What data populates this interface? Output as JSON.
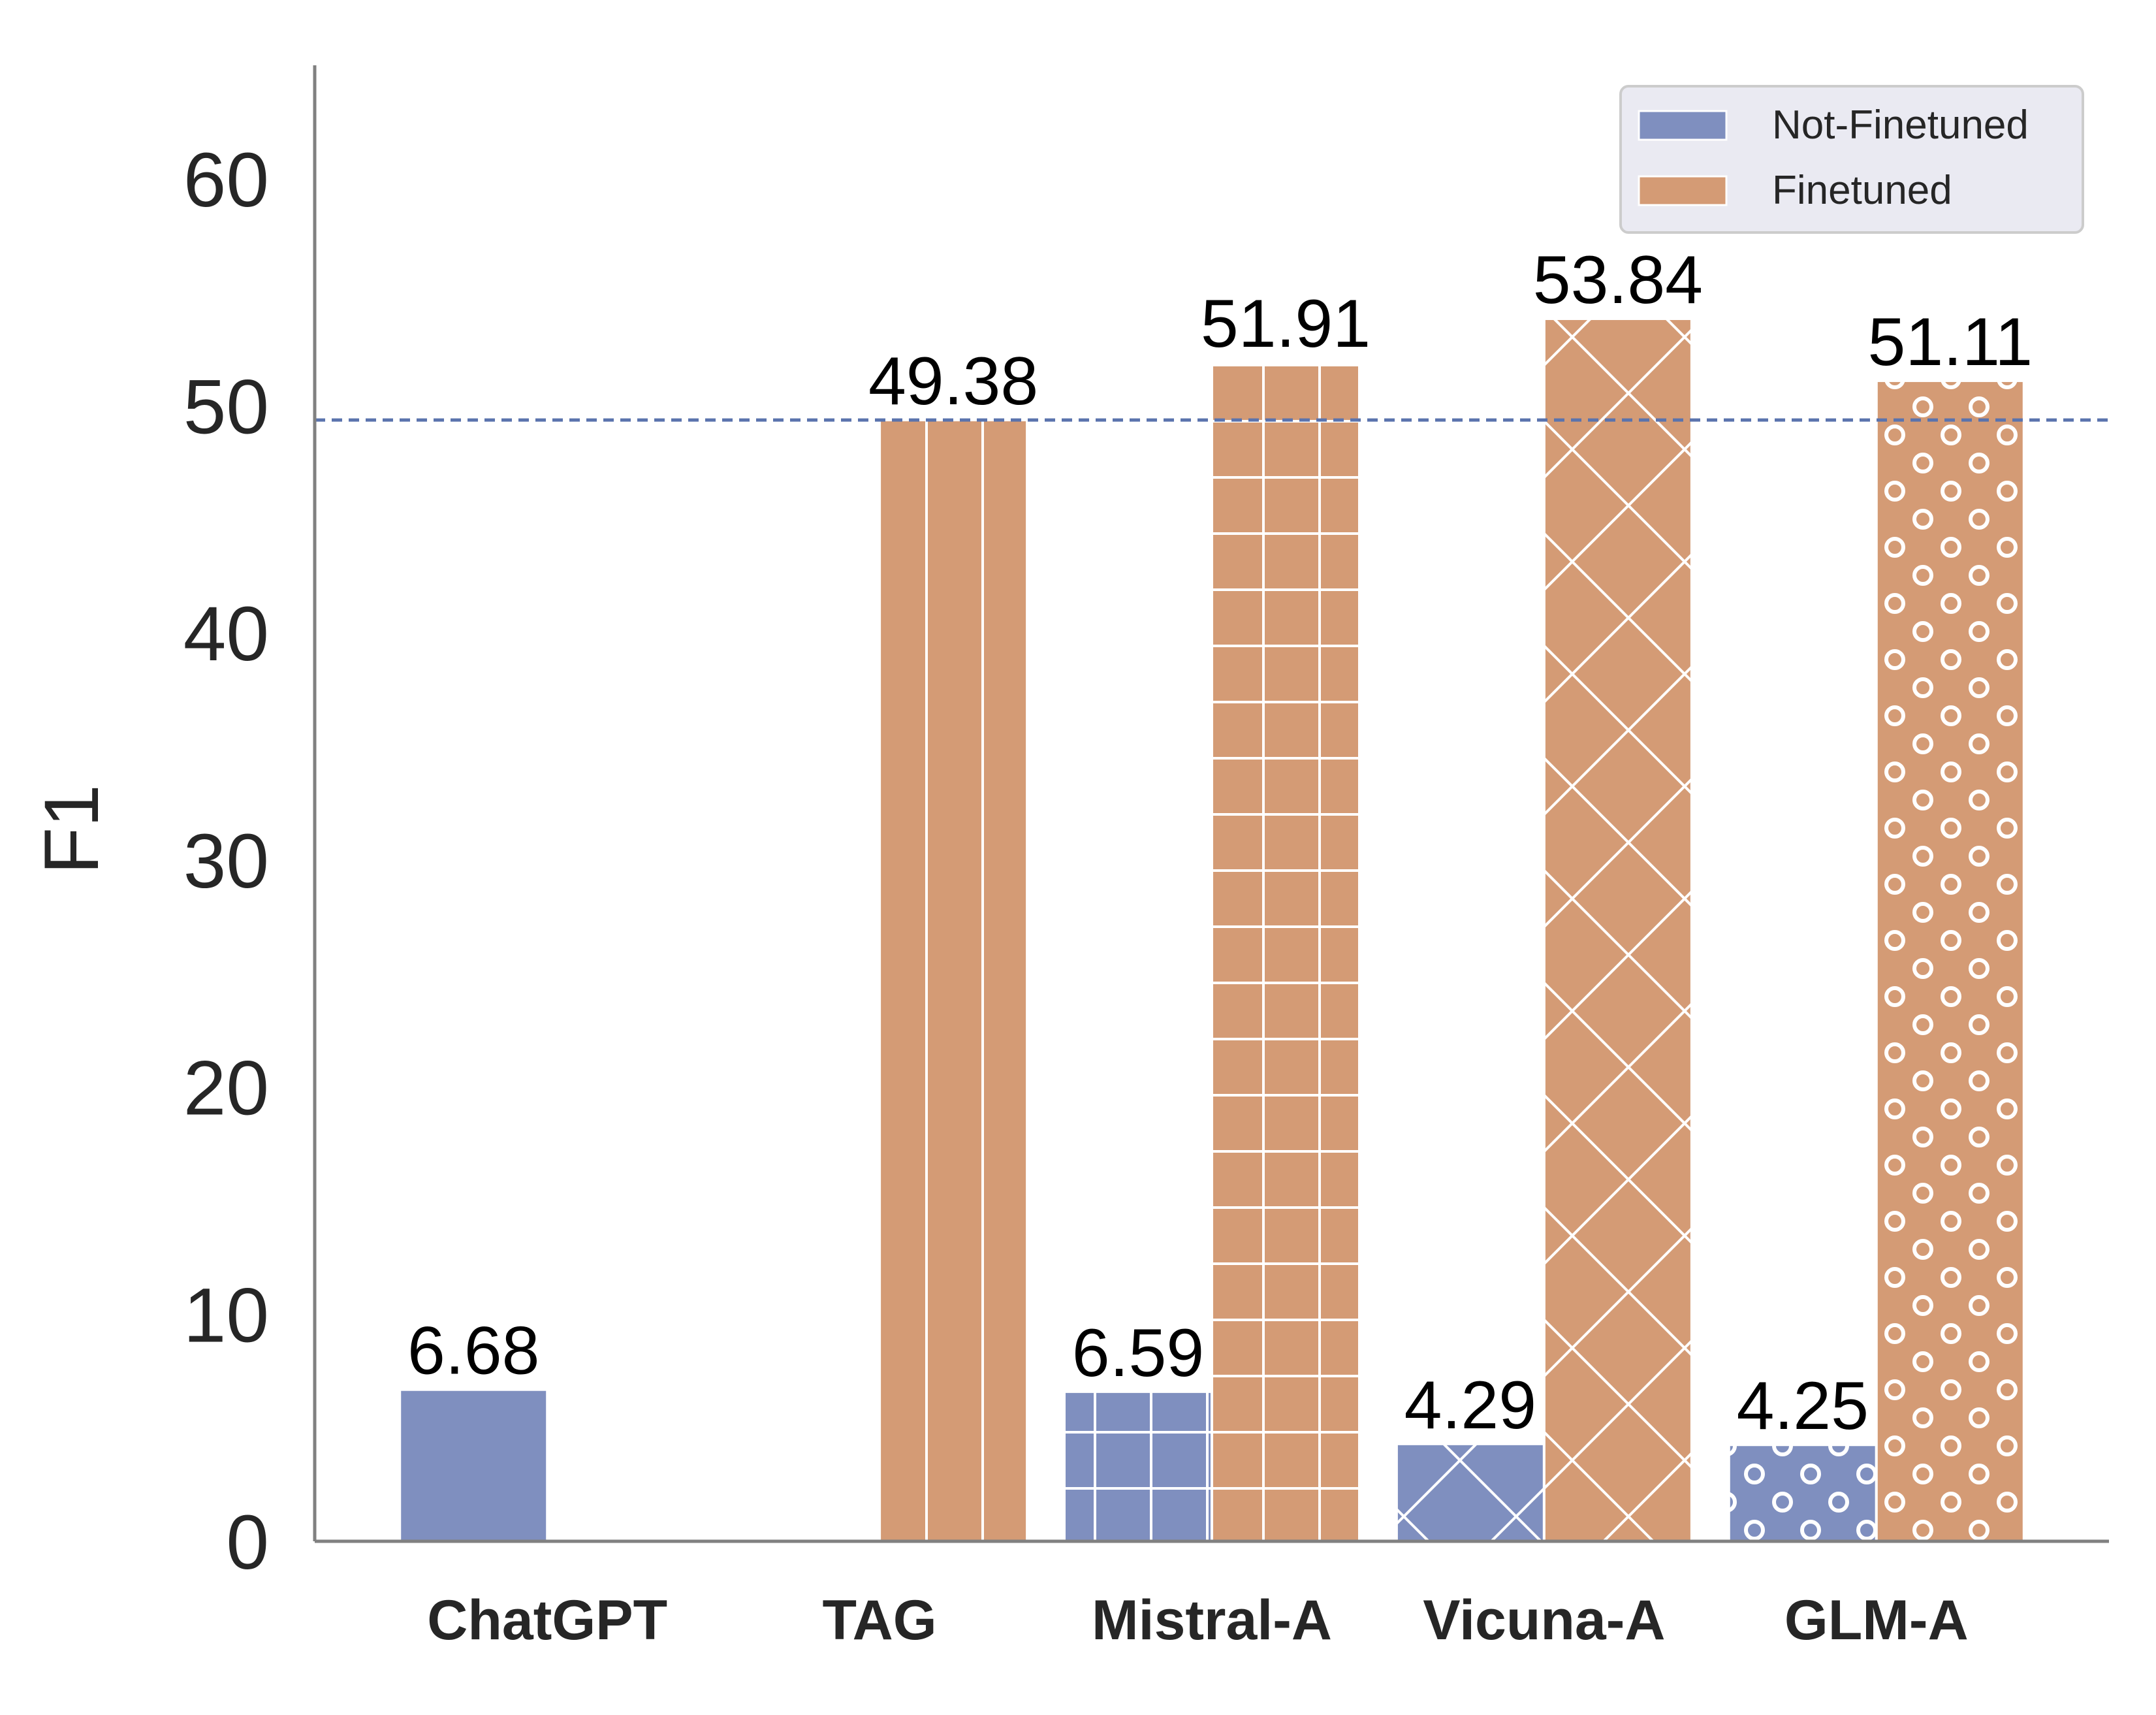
{
  "chart_data": {
    "type": "bar",
    "title": "",
    "xlabel": "",
    "ylabel": "F1",
    "ylim": [
      0,
      65
    ],
    "yticks": [
      "0",
      "10",
      "20",
      "30",
      "40",
      "50",
      "60"
    ],
    "grid": false,
    "legend_position": "top-right",
    "categories": [
      "ChatGPT",
      "TAG",
      "Mistral-A",
      "Vicuna-A",
      "GLM-A"
    ],
    "category_patterns": [
      "none",
      "vertical-lines",
      "grid",
      "crosshatch",
      "circles"
    ],
    "series": [
      {
        "name": "Not-Finetuned",
        "color": "#7f8fbf",
        "values": [
          6.68,
          null,
          6.59,
          4.29,
          4.25
        ],
        "labels": [
          "6.68",
          "",
          "6.59",
          "4.29",
          "4.25"
        ]
      },
      {
        "name": "Finetuned",
        "color": "#d49b75",
        "values": [
          null,
          49.38,
          51.91,
          53.84,
          51.11
        ],
        "labels": [
          "",
          "49.38",
          "51.91",
          "53.84",
          "51.11"
        ]
      }
    ],
    "reference_line": {
      "value": 49.38,
      "style": "dashed",
      "color": "#5a73ad"
    }
  }
}
